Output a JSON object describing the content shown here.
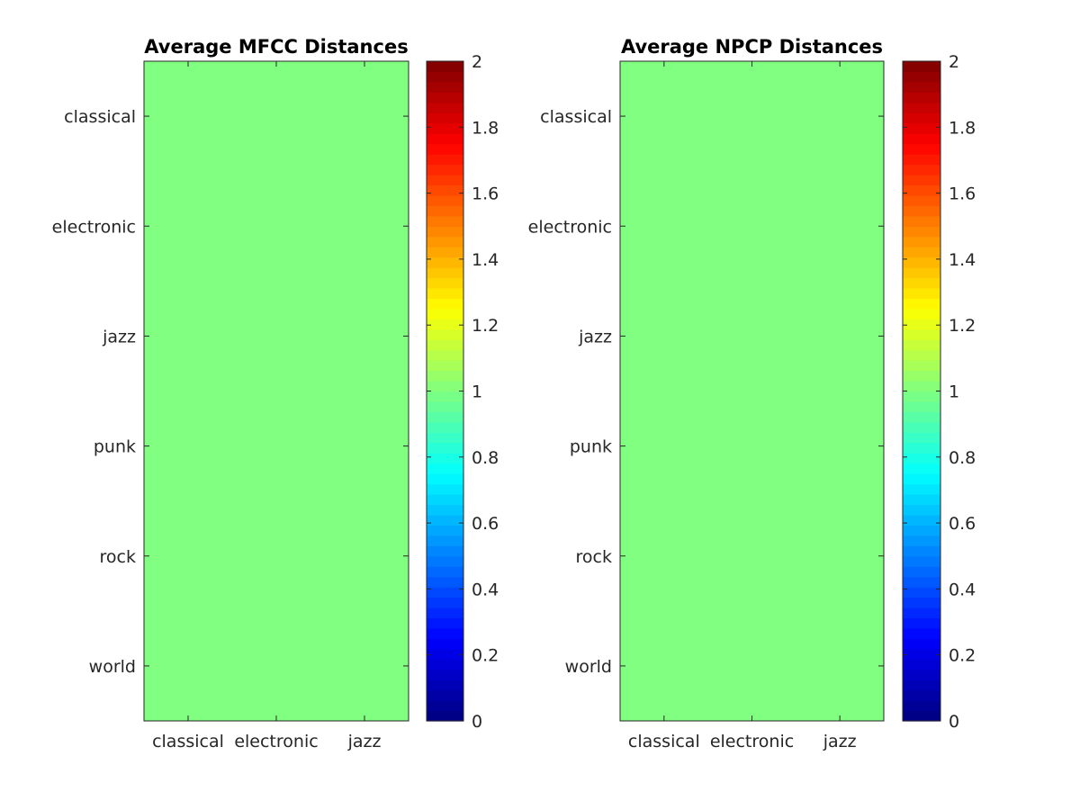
{
  "chart_data": [
    {
      "type": "heatmap",
      "title": "Average MFCC Distances",
      "x_categories": [
        "classical",
        "electronic",
        "jazz"
      ],
      "y_categories": [
        "classical",
        "electronic",
        "jazz",
        "punk",
        "rock",
        "world"
      ],
      "values": [
        [
          1,
          1,
          1
        ],
        [
          1,
          1,
          1
        ],
        [
          1,
          1,
          1
        ],
        [
          1,
          1,
          1
        ],
        [
          1,
          1,
          1
        ],
        [
          1,
          1,
          1
        ]
      ],
      "colorbar": {
        "colormap": "jet",
        "clim": [
          0,
          2
        ],
        "ticks": [
          "0",
          "0.2",
          "0.4",
          "0.6",
          "0.8",
          "1",
          "1.2",
          "1.4",
          "1.6",
          "1.8",
          "2"
        ]
      }
    },
    {
      "type": "heatmap",
      "title": "Average NPCP Distances",
      "x_categories": [
        "classical",
        "electronic",
        "jazz"
      ],
      "y_categories": [
        "classical",
        "electronic",
        "jazz",
        "punk",
        "rock",
        "world"
      ],
      "values": [
        [
          1,
          1,
          1
        ],
        [
          1,
          1,
          1
        ],
        [
          1,
          1,
          1
        ],
        [
          1,
          1,
          1
        ],
        [
          1,
          1,
          1
        ],
        [
          1,
          1,
          1
        ]
      ],
      "colorbar": {
        "colormap": "jet",
        "clim": [
          0,
          2
        ],
        "ticks": [
          "0",
          "0.2",
          "0.4",
          "0.6",
          "0.8",
          "1",
          "1.2",
          "1.4",
          "1.6",
          "1.8",
          "2"
        ]
      }
    }
  ]
}
